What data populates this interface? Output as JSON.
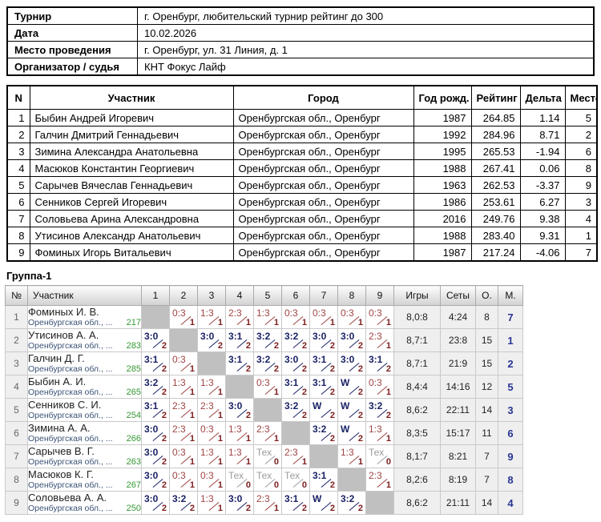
{
  "info": {
    "rows": [
      {
        "label": "Турнир",
        "value": "г. Оренбург, любительский турнир рейтинг до 300"
      },
      {
        "label": "Дата",
        "value": "10.02.2026"
      },
      {
        "label": "Место проведения",
        "value": "г. Оренбург, ул. 31 Линия, д. 1"
      },
      {
        "label": "Организатор / судья",
        "value": "КНТ Фокус Лайф"
      }
    ]
  },
  "participants": {
    "columns": [
      "N",
      "Участник",
      "Город",
      "Год рожд.",
      "Рейтинг",
      "Дельта",
      "Место"
    ],
    "rows": [
      [
        "1",
        "Быбин Андрей Игоревич",
        "Оренбургская обл., Оренбург",
        "1987",
        "264.85",
        "1.14",
        "5"
      ],
      [
        "2",
        "Галчин Дмитрий Геннадьевич",
        "Оренбургская обл., Оренбург",
        "1992",
        "284.96",
        "8.71",
        "2"
      ],
      [
        "3",
        "Зимина Александра Анатольевна",
        "Оренбургская обл., Оренбург",
        "1995",
        "265.53",
        "-1.94",
        "6"
      ],
      [
        "4",
        "Масюков Константин Георгиевич",
        "Оренбургская обл., Оренбург",
        "1988",
        "267.41",
        "0.06",
        "8"
      ],
      [
        "5",
        "Сарычев Вячеслав Геннадьевич",
        "Оренбургская обл., Оренбург",
        "1963",
        "262.53",
        "-3.37",
        "9"
      ],
      [
        "6",
        "Сенников Сергей Игоревич",
        "Оренбургская обл., Оренбург",
        "1986",
        "253.61",
        "6.27",
        "3"
      ],
      [
        "7",
        "Соловьева Арина Александровна",
        "Оренбургская обл., Оренбург",
        "2016",
        "249.76",
        "9.38",
        "4"
      ],
      [
        "8",
        "Утисинов Александр Анатольевич",
        "Оренбургская обл., Оренбург",
        "1988",
        "283.40",
        "9.31",
        "1"
      ],
      [
        "9",
        "Фоминых Игорь Витальевич",
        "Оренбургская обл., Оренбург",
        "1987",
        "217.24",
        "-4.06",
        "7"
      ]
    ]
  },
  "group": {
    "title": "Группа-1",
    "columns": [
      "№",
      "Участник",
      "1",
      "2",
      "3",
      "4",
      "5",
      "6",
      "7",
      "8",
      "9",
      "Игры",
      "Сеты",
      "О.",
      "М."
    ],
    "rows": [
      {
        "n": "1",
        "name": "Фоминых И. В.",
        "club": "Оренбургская обл., ...",
        "rating": "217",
        "cells": [
          {
            "k": "self"
          },
          {
            "k": "loss",
            "v": "0:3",
            "p": "1"
          },
          {
            "k": "loss",
            "v": "1:3",
            "p": "1"
          },
          {
            "k": "loss",
            "v": "2:3",
            "p": "1"
          },
          {
            "k": "loss",
            "v": "1:3",
            "p": "1"
          },
          {
            "k": "loss",
            "v": "0:3",
            "p": "1"
          },
          {
            "k": "loss",
            "v": "0:3",
            "p": "1"
          },
          {
            "k": "loss",
            "v": "0:3",
            "p": "1"
          },
          {
            "k": "loss",
            "v": "0:3",
            "p": "1"
          }
        ],
        "games": "8,0:8",
        "sets": "4:24",
        "points": "8",
        "place": "7"
      },
      {
        "n": "2",
        "name": "Утисинов А. А.",
        "club": "Оренбургская обл., ...",
        "rating": "283",
        "cells": [
          {
            "k": "win",
            "v": "3:0",
            "p": "2"
          },
          {
            "k": "self"
          },
          {
            "k": "win",
            "v": "3:0",
            "p": "2"
          },
          {
            "k": "win",
            "v": "3:1",
            "p": "2"
          },
          {
            "k": "win",
            "v": "3:2",
            "p": "2"
          },
          {
            "k": "win",
            "v": "3:2",
            "p": "2"
          },
          {
            "k": "win",
            "v": "3:0",
            "p": "2"
          },
          {
            "k": "win",
            "v": "3:0",
            "p": "2"
          },
          {
            "k": "loss",
            "v": "2:3",
            "p": "1"
          }
        ],
        "games": "8,7:1",
        "sets": "23:8",
        "points": "15",
        "place": "1"
      },
      {
        "n": "3",
        "name": "Галчин Д. Г.",
        "club": "Оренбургская обл., ...",
        "rating": "285",
        "cells": [
          {
            "k": "win",
            "v": "3:1",
            "p": "2"
          },
          {
            "k": "loss",
            "v": "0:3",
            "p": "1"
          },
          {
            "k": "self"
          },
          {
            "k": "win",
            "v": "3:1",
            "p": "2"
          },
          {
            "k": "win",
            "v": "3:2",
            "p": "2"
          },
          {
            "k": "win",
            "v": "3:0",
            "p": "2"
          },
          {
            "k": "win",
            "v": "3:1",
            "p": "2"
          },
          {
            "k": "win",
            "v": "3:0",
            "p": "2"
          },
          {
            "k": "win",
            "v": "3:1",
            "p": "2"
          }
        ],
        "games": "8,7:1",
        "sets": "21:9",
        "points": "15",
        "place": "2"
      },
      {
        "n": "4",
        "name": "Быбин А. И.",
        "club": "Оренбургская обл., ...",
        "rating": "265",
        "cells": [
          {
            "k": "win",
            "v": "3:2",
            "p": "2"
          },
          {
            "k": "loss",
            "v": "1:3",
            "p": "1"
          },
          {
            "k": "loss",
            "v": "1:3",
            "p": "1"
          },
          {
            "k": "self"
          },
          {
            "k": "loss",
            "v": "0:3",
            "p": "1"
          },
          {
            "k": "win",
            "v": "3:1",
            "p": "2"
          },
          {
            "k": "win",
            "v": "3:1",
            "p": "2"
          },
          {
            "k": "win",
            "v": "W",
            "p": "2"
          },
          {
            "k": "loss",
            "v": "0:3",
            "p": "1"
          }
        ],
        "games": "8,4:4",
        "sets": "14:16",
        "points": "12",
        "place": "5"
      },
      {
        "n": "5",
        "name": "Сенников С. И.",
        "club": "Оренбургская обл., ...",
        "rating": "254",
        "cells": [
          {
            "k": "win",
            "v": "3:1",
            "p": "2"
          },
          {
            "k": "loss",
            "v": "2:3",
            "p": "1"
          },
          {
            "k": "loss",
            "v": "2:3",
            "p": "1"
          },
          {
            "k": "win",
            "v": "3:0",
            "p": "2"
          },
          {
            "k": "self"
          },
          {
            "k": "win",
            "v": "3:2",
            "p": "2"
          },
          {
            "k": "win",
            "v": "W",
            "p": "2"
          },
          {
            "k": "win",
            "v": "W",
            "p": "2"
          },
          {
            "k": "win",
            "v": "3:2",
            "p": "2"
          }
        ],
        "games": "8,6:2",
        "sets": "22:11",
        "points": "14",
        "place": "3"
      },
      {
        "n": "6",
        "name": "Зимина А. А.",
        "club": "Оренбургская обл., ...",
        "rating": "266",
        "cells": [
          {
            "k": "win",
            "v": "3:0",
            "p": "2"
          },
          {
            "k": "loss",
            "v": "2:3",
            "p": "1"
          },
          {
            "k": "loss",
            "v": "0:3",
            "p": "1"
          },
          {
            "k": "loss",
            "v": "1:3",
            "p": "1"
          },
          {
            "k": "loss",
            "v": "2:3",
            "p": "1"
          },
          {
            "k": "self"
          },
          {
            "k": "win",
            "v": "3:2",
            "p": "2"
          },
          {
            "k": "win",
            "v": "W",
            "p": "2"
          },
          {
            "k": "loss",
            "v": "1:3",
            "p": "1"
          }
        ],
        "games": "8,3:5",
        "sets": "15:17",
        "points": "11",
        "place": "6"
      },
      {
        "n": "7",
        "name": "Сарычев В. Г.",
        "club": "Оренбургская обл., ...",
        "rating": "263",
        "cells": [
          {
            "k": "win",
            "v": "3:0",
            "p": "2"
          },
          {
            "k": "loss",
            "v": "0:3",
            "p": "1"
          },
          {
            "k": "loss",
            "v": "1:3",
            "p": "1"
          },
          {
            "k": "loss",
            "v": "1:3",
            "p": "1"
          },
          {
            "k": "tech",
            "v": "Тех",
            "p": "0"
          },
          {
            "k": "loss",
            "v": "2:3",
            "p": "1"
          },
          {
            "k": "self"
          },
          {
            "k": "loss",
            "v": "1:3",
            "p": "1"
          },
          {
            "k": "tech",
            "v": "Тех",
            "p": "0"
          }
        ],
        "games": "8,1:7",
        "sets": "8:21",
        "points": "7",
        "place": "9"
      },
      {
        "n": "8",
        "name": "Масюков К. Г.",
        "club": "Оренбургская обл., ...",
        "rating": "267",
        "cells": [
          {
            "k": "win",
            "v": "3:0",
            "p": "2"
          },
          {
            "k": "loss",
            "v": "0:3",
            "p": "1"
          },
          {
            "k": "loss",
            "v": "0:3",
            "p": "1"
          },
          {
            "k": "tech",
            "v": "Тех",
            "p": "0"
          },
          {
            "k": "tech",
            "v": "Тех",
            "p": "0"
          },
          {
            "k": "tech",
            "v": "Тех",
            "p": "0"
          },
          {
            "k": "win",
            "v": "3:1",
            "p": "2"
          },
          {
            "k": "self"
          },
          {
            "k": "loss",
            "v": "2:3",
            "p": "1"
          }
        ],
        "games": "8,2:6",
        "sets": "8:19",
        "points": "7",
        "place": "8"
      },
      {
        "n": "9",
        "name": "Соловьева А. А.",
        "club": "Оренбургская обл., ...",
        "rating": "250",
        "cells": [
          {
            "k": "win",
            "v": "3:0",
            "p": "2"
          },
          {
            "k": "win",
            "v": "3:2",
            "p": "2"
          },
          {
            "k": "loss",
            "v": "1:3",
            "p": "1"
          },
          {
            "k": "win",
            "v": "3:0",
            "p": "2"
          },
          {
            "k": "loss",
            "v": "2:3",
            "p": "1"
          },
          {
            "k": "win",
            "v": "3:1",
            "p": "2"
          },
          {
            "k": "win",
            "v": "W",
            "p": "2"
          },
          {
            "k": "win",
            "v": "3:2",
            "p": "2"
          },
          {
            "k": "self"
          }
        ],
        "games": "8,6:2",
        "sets": "21:11",
        "points": "14",
        "place": "4"
      }
    ]
  }
}
